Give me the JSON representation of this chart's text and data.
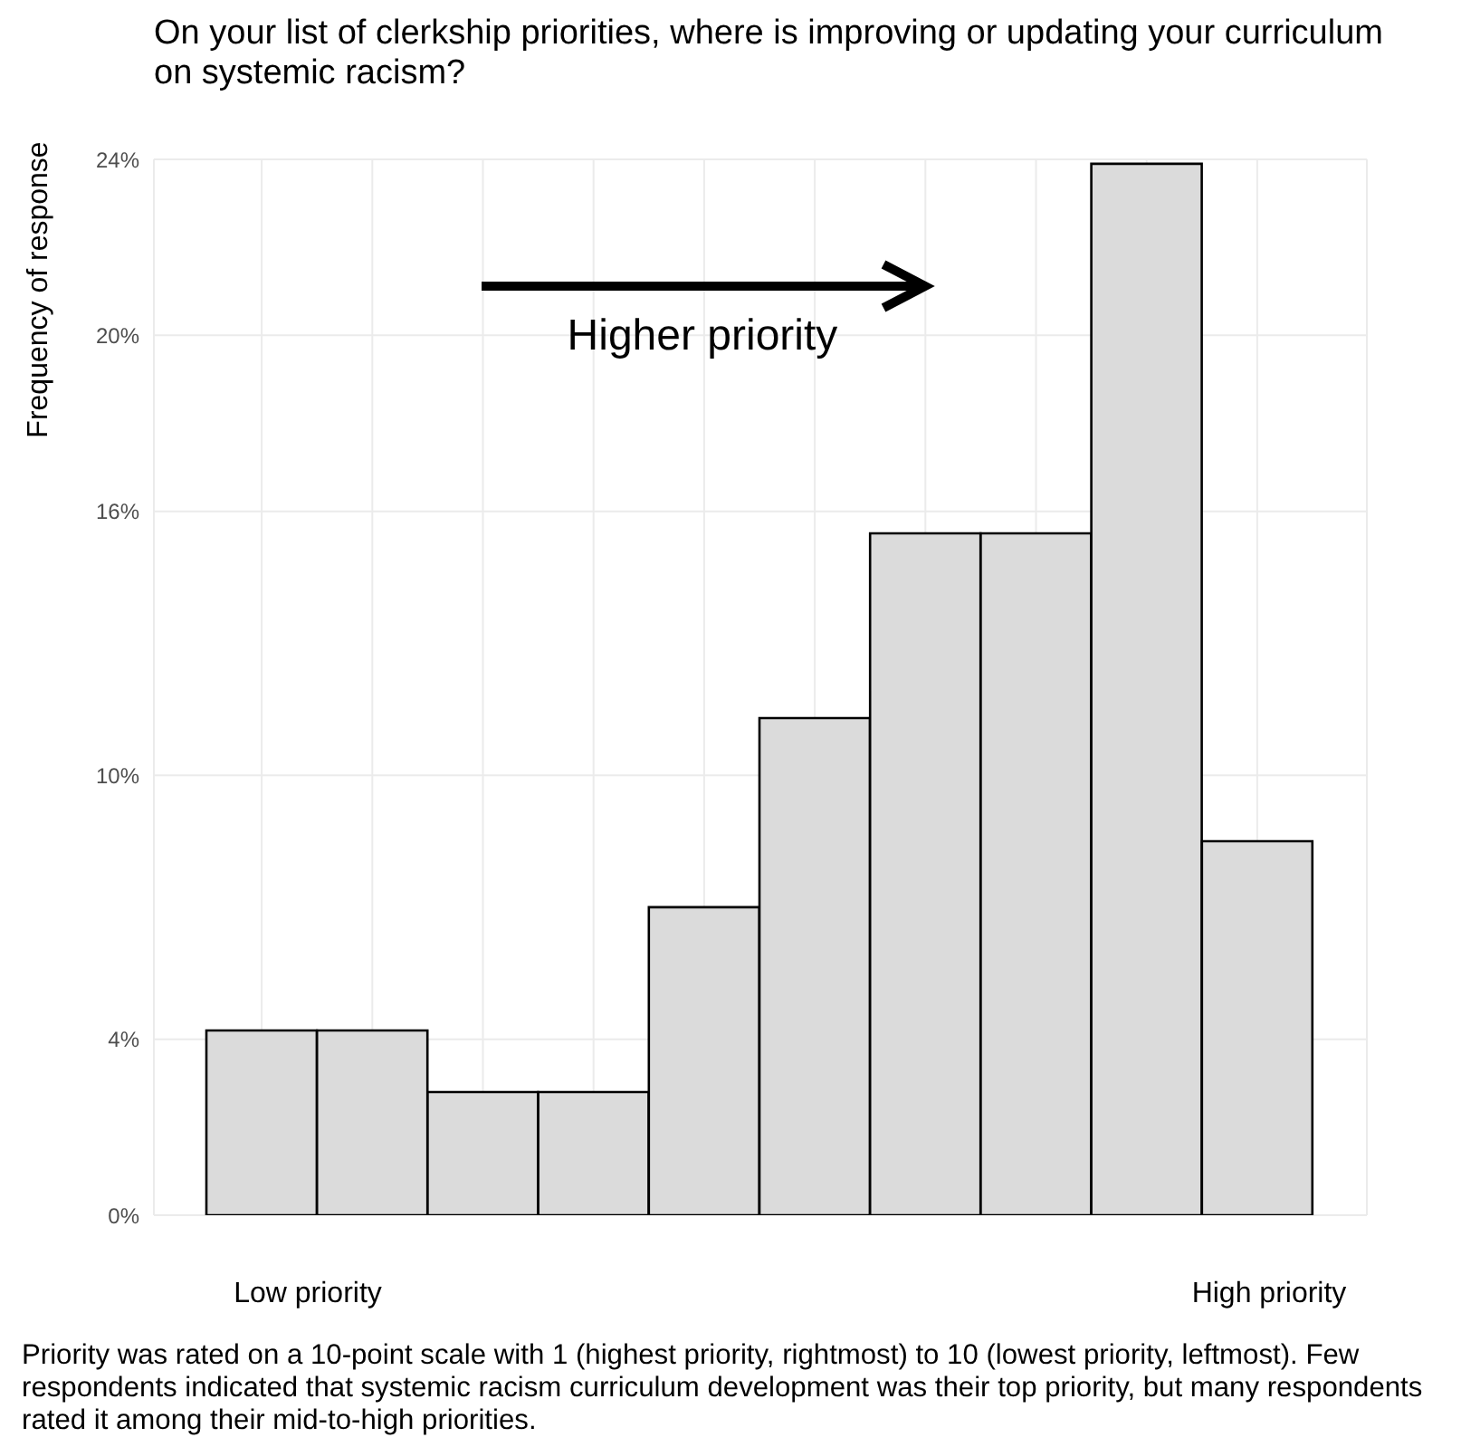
{
  "chart_data": {
    "type": "bar",
    "title": "On your list of clerkship priorities, where is improving or updating your curriculum on systemic racism?",
    "ylabel": "Frequency of response",
    "categories": [
      null,
      null,
      null,
      null,
      null,
      null,
      null,
      null,
      null,
      null
    ],
    "values": [
      4.2,
      4.2,
      2.8,
      2.8,
      7.0,
      11.3,
      15.5,
      15.5,
      23.9,
      8.5
    ],
    "color": "#dbdbdb",
    "ylim": [
      0,
      24
    ],
    "yticks": [
      {
        "value": 0,
        "label": "0%"
      },
      {
        "value": 4,
        "label": "4%"
      },
      {
        "value": 10,
        "label": "10%"
      },
      {
        "value": 16,
        "label": "16%"
      },
      {
        "value": 20,
        "label": "20%"
      },
      {
        "value": 24,
        "label": "24%"
      }
    ],
    "grid": true,
    "annotations": [
      "Higher priority",
      "Low priority",
      "High priority",
      "Priority was rated on a 10-point scale with 1 (highest priority, rightmost) to 10 (lowest priority, leftmost). Few respondents indicated that systemic racism curriculum development was their top priority, but many respondents rated it among their mid-to-high priorities."
    ]
  }
}
